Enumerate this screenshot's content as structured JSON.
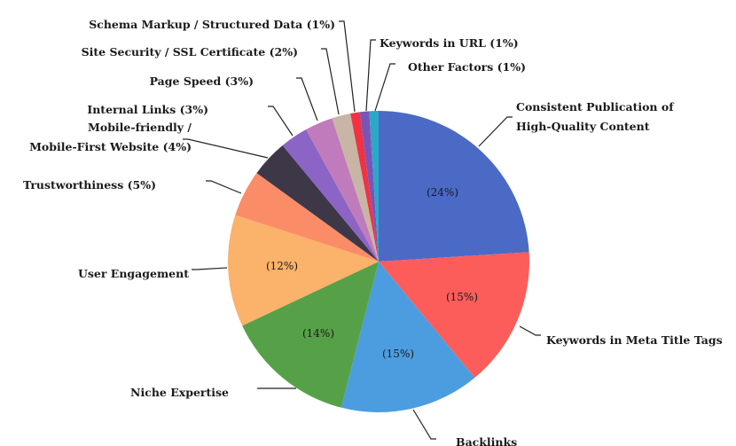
{
  "chart_data": {
    "type": "pie",
    "title": "",
    "slices": [
      {
        "label_lines": [
          "Consistent Publication of",
          "High-Quality Content"
        ],
        "value": 24,
        "pct_text": "(24%)",
        "color": "#4a6ac6"
      },
      {
        "label_lines": [
          "Keywords in Meta Title Tags"
        ],
        "value": 15,
        "pct_text": "(15%)",
        "color": "#fc5d5a"
      },
      {
        "label_lines": [
          "Backlinks"
        ],
        "value": 15,
        "pct_text": "(15%)",
        "color": "#4b9de0"
      },
      {
        "label_lines": [
          "Niche Expertise"
        ],
        "value": 14,
        "pct_text": "(14%)",
        "color": "#56a147"
      },
      {
        "label_lines": [
          "User Engagement"
        ],
        "value": 12,
        "pct_text": "(12%)",
        "color": "#fbb26a"
      },
      {
        "label_lines": [
          "Trustworthiness (5%)"
        ],
        "value": 5,
        "pct_text": "",
        "color": "#fb8c68"
      },
      {
        "label_lines": [
          "Mobile-friendly /",
          "Mobile-First Website (4%)"
        ],
        "value": 4,
        "pct_text": "",
        "color": "#3d3748"
      },
      {
        "label_lines": [
          "Internal Links (3%)"
        ],
        "value": 3,
        "pct_text": "",
        "color": "#8c64c5"
      },
      {
        "label_lines": [
          "Page Speed (3%)"
        ],
        "value": 3,
        "pct_text": "",
        "color": "#c07bbc"
      },
      {
        "label_lines": [
          "Site Security / SSL Certificate (2%)"
        ],
        "value": 2,
        "pct_text": "",
        "color": "#c9b5a5"
      },
      {
        "label_lines": [
          "Schema Markup / Structured Data (1%)"
        ],
        "value": 1,
        "pct_text": "",
        "color": "#ee3344"
      },
      {
        "label_lines": [
          "Keywords in URL (1%)"
        ],
        "value": 1,
        "pct_text": "",
        "color": "#7a55b8"
      },
      {
        "label_lines": [
          "Other Factors (1%)"
        ],
        "value": 1,
        "pct_text": "",
        "color": "#2aa8c8"
      }
    ]
  }
}
